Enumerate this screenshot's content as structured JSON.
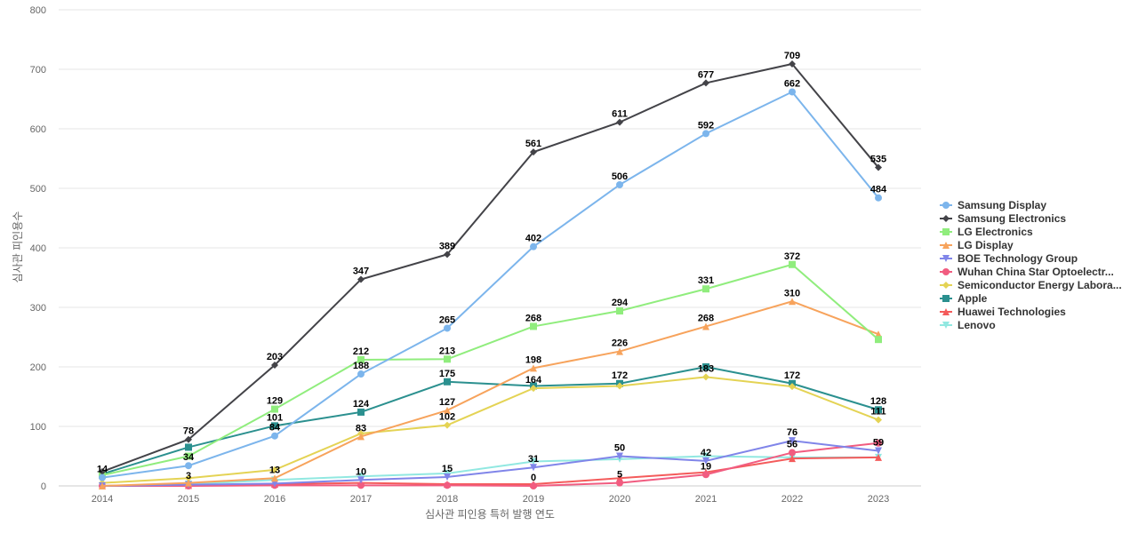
{
  "chart_data": {
    "type": "line",
    "title": "",
    "xlabel": "심사관 피인용 특허 발행 연도",
    "ylabel": "심사관 피인용수",
    "ylim": [
      0,
      800
    ],
    "y_ticks": [
      0,
      100,
      200,
      300,
      400,
      500,
      600,
      700,
      800
    ],
    "legend_position": "right",
    "categories": [
      "2014",
      "2015",
      "2016",
      "2017",
      "2018",
      "2019",
      "2020",
      "2021",
      "2022",
      "2023"
    ],
    "series": [
      {
        "name": "Samsung Display",
        "color": "#7cb5ec",
        "marker": "circle",
        "values": [
          14,
          34,
          84,
          188,
          265,
          402,
          506,
          592,
          662,
          484
        ],
        "labeled": [
          false,
          true,
          true,
          true,
          true,
          true,
          true,
          true,
          true,
          true
        ]
      },
      {
        "name": "Samsung Electronics",
        "color": "#434348",
        "marker": "diamond",
        "values": [
          24,
          78,
          203,
          347,
          389,
          561,
          611,
          677,
          709,
          535
        ],
        "labeled": [
          false,
          true,
          true,
          true,
          true,
          true,
          true,
          true,
          true,
          true
        ]
      },
      {
        "name": "LG Electronics",
        "color": "#90ed7d",
        "marker": "square",
        "values": [
          18,
          50,
          129,
          212,
          213,
          268,
          294,
          331,
          372,
          246
        ],
        "labeled": [
          false,
          false,
          true,
          true,
          true,
          true,
          true,
          true,
          true,
          false
        ]
      },
      {
        "name": "LG Display",
        "color": "#f7a35c",
        "marker": "triangle",
        "values": [
          0,
          5,
          13,
          83,
          127,
          198,
          226,
          268,
          310,
          255
        ],
        "labeled": [
          false,
          false,
          true,
          true,
          true,
          true,
          true,
          true,
          true,
          false
        ]
      },
      {
        "name": "BOE Technology Group",
        "color": "#8085e9",
        "marker": "triangle-down",
        "values": [
          0,
          2,
          4,
          10,
          15,
          31,
          50,
          42,
          76,
          59
        ],
        "labeled": [
          false,
          false,
          false,
          true,
          true,
          true,
          true,
          true,
          true,
          true
        ]
      },
      {
        "name": "Wuhan China Star Optoelectr...",
        "color": "#f15c80",
        "marker": "circle",
        "values": [
          0,
          0,
          1,
          1,
          1,
          0,
          5,
          19,
          56,
          72
        ],
        "labeled": [
          false,
          false,
          false,
          false,
          false,
          true,
          true,
          true,
          true,
          false
        ]
      },
      {
        "name": "Semiconductor Energy Labora...",
        "color": "#e4d354",
        "marker": "diamond",
        "values": [
          5,
          13,
          27,
          88,
          102,
          164,
          168,
          183,
          167,
          111
        ],
        "labeled": [
          false,
          false,
          false,
          false,
          true,
          true,
          false,
          true,
          false,
          true
        ]
      },
      {
        "name": "Apple",
        "color": "#2b908f",
        "marker": "square",
        "values": [
          20,
          65,
          101,
          124,
          175,
          168,
          172,
          200,
          172,
          128
        ],
        "labeled": [
          false,
          false,
          true,
          true,
          true,
          false,
          true,
          false,
          true,
          true
        ]
      },
      {
        "name": "Huawei Technologies",
        "color": "#f45b5b",
        "marker": "triangle",
        "values": [
          0,
          1,
          3,
          5,
          3,
          3,
          13,
          23,
          46,
          48
        ],
        "labeled": [
          false,
          false,
          false,
          false,
          false,
          false,
          false,
          false,
          false,
          false
        ]
      },
      {
        "name": "Lenovo",
        "color": "#91e8e1",
        "marker": "triangle-down",
        "values": [
          0,
          3,
          10,
          16,
          21,
          41,
          45,
          50,
          48,
          48
        ],
        "labeled": [
          false,
          true,
          false,
          false,
          false,
          false,
          false,
          false,
          false,
          false
        ]
      }
    ],
    "label_overrides": [
      {
        "series": 0,
        "index": 0,
        "text": "14"
      },
      {
        "series": 3,
        "index": 2,
        "text": "13"
      },
      {
        "series": 4,
        "index": 3,
        "text": "10"
      },
      {
        "series": 4,
        "index": 4,
        "text": "15"
      },
      {
        "series": 4,
        "index": 5,
        "text": "31"
      },
      {
        "series": 4,
        "index": 6,
        "text": "50"
      },
      {
        "series": 4,
        "index": 7,
        "text": "42"
      },
      {
        "series": 4,
        "index": 8,
        "text": "76"
      },
      {
        "series": 4,
        "index": 9,
        "text": "59"
      },
      {
        "series": 5,
        "index": 5,
        "text": "0"
      },
      {
        "series": 5,
        "index": 6,
        "text": "5"
      },
      {
        "series": 5,
        "index": 7,
        "text": "19"
      },
      {
        "series": 5,
        "index": 8,
        "text": "56"
      },
      {
        "series": 9,
        "index": 1,
        "text": "3"
      }
    ]
  }
}
